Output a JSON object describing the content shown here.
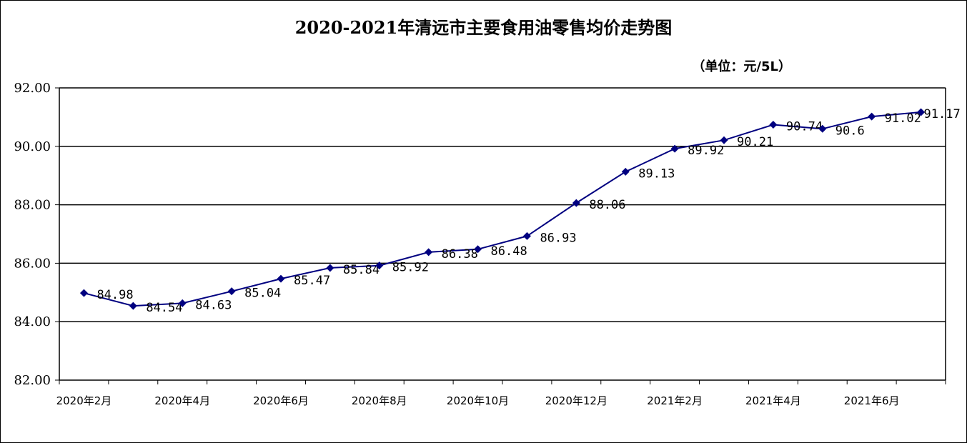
{
  "title": "2020-2021年清远市主要食用油零售均价走势图",
  "unit": "（单位：元/5L）",
  "chart_data": {
    "type": "line",
    "title": "2020-2021年清远市主要食用油零售均价走势图",
    "unit_label": "（单位：元/5L）",
    "ylim": [
      82,
      92
    ],
    "yticks": [
      "82.00",
      "84.00",
      "86.00",
      "88.00",
      "90.00",
      "92.00"
    ],
    "x": [
      "2020年2月",
      "2020年3月",
      "2020年4月",
      "2020年5月",
      "2020年6月",
      "2020年7月",
      "2020年8月",
      "2020年9月",
      "2020年10月",
      "2020年11月",
      "2020年12月",
      "2021年1月",
      "2021年2月",
      "2021年3月",
      "2021年4月",
      "2021年5月",
      "2021年6月",
      "2021年7月"
    ],
    "x_tick_labels": [
      "2020年2月",
      "2020年4月",
      "2020年6月",
      "2020年8月",
      "2020年10月",
      "2020年12月",
      "2021年2月",
      "2021年4月",
      "2021年6月"
    ],
    "values": [
      84.98,
      84.54,
      84.63,
      85.04,
      85.47,
      85.84,
      85.92,
      86.38,
      86.48,
      86.93,
      88.06,
      89.13,
      89.92,
      90.21,
      90.74,
      90.6,
      91.02,
      91.17
    ],
    "data_labels": [
      "84.98",
      "84.54",
      "84.63",
      "85.04",
      "85.47",
      "85.84",
      "85.92",
      "86.38",
      "86.48",
      "86.93",
      "88.06",
      "89.13",
      "89.92",
      "90.21",
      "90.74",
      "90.6",
      "91.02",
      "91.17"
    ],
    "line_color": "#000080",
    "grid": "horizontal",
    "legend": "none"
  }
}
